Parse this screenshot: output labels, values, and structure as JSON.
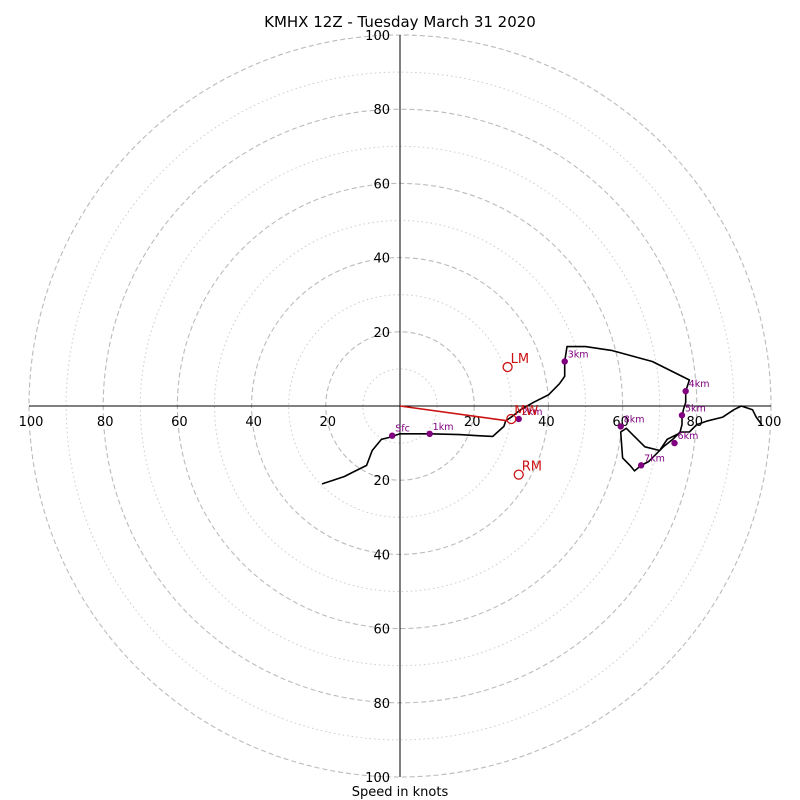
{
  "chart_data": {
    "type": "line",
    "title": "KMHX 12Z - Tuesday March 31 2020",
    "xlabel": "Speed in knots",
    "ylabel": "",
    "xlim": [
      -100,
      100
    ],
    "ylim": [
      -100,
      100
    ],
    "rings_major": [
      20,
      40,
      60,
      80,
      100
    ],
    "rings_minor": [
      10,
      30,
      50,
      70,
      90
    ],
    "ticks": [
      20,
      40,
      60,
      80,
      100
    ],
    "grid": true,
    "colors": {
      "trace": "#000000",
      "height_marker": "#800080",
      "motion": "#cc1111",
      "ring": "#bbbbbb"
    },
    "series": [
      {
        "x": [
          -21,
          -18,
          -15,
          -12,
          -9,
          -7.5,
          -5,
          -3,
          0,
          3,
          8,
          16,
          21,
          25,
          28,
          28.5,
          30,
          32.5,
          36,
          40,
          43,
          44.4,
          44.4,
          45,
          50,
          57,
          68,
          78,
          77,
          77,
          76.4,
          76,
          76,
          75.5,
          73.5,
          71,
          69,
          67,
          65,
          63.2,
          62,
          60,
          59.5,
          61,
          66,
          70,
          72,
          74,
          76,
          78,
          80,
          83,
          87,
          90,
          92,
          95,
          96,
          97.5
        ],
        "y": [
          -21,
          -20,
          -19,
          -17.5,
          -16,
          -12,
          -9,
          -8.5,
          -7.5,
          -7.5,
          -7.5,
          -7.7,
          -8,
          -8.2,
          -5.5,
          -4,
          -3,
          -1,
          1,
          3,
          6,
          8,
          12,
          16,
          16,
          15,
          12,
          7,
          4,
          1,
          -1,
          -3,
          -5,
          -7,
          -9,
          -11,
          -13,
          -15,
          -16,
          -17.5,
          -16,
          -14,
          -7,
          -6,
          -11,
          -12,
          -9,
          -8,
          -7,
          -7,
          -5,
          -4,
          -3,
          -1,
          0,
          -1,
          -3,
          -5
        ]
      }
    ],
    "height_labels": [
      {
        "label": "Sfc",
        "x": -2.1,
        "y": -8
      },
      {
        "label": "1km",
        "x": 8,
        "y": -7.5
      },
      {
        "label": "2km",
        "x": 32,
        "y": -3.5
      },
      {
        "label": "3km",
        "x": 44.4,
        "y": 12
      },
      {
        "label": "4km",
        "x": 77,
        "y": 4
      },
      {
        "label": "5km",
        "x": 76,
        "y": -2.5
      },
      {
        "label": "6km",
        "x": 74,
        "y": -10
      },
      {
        "label": "7km",
        "x": 65,
        "y": -16
      },
      {
        "label": "8km",
        "x": 59.5,
        "y": -5.5
      }
    ],
    "storm_motion": [
      {
        "label": "LM",
        "x": 29,
        "y": 10.5
      },
      {
        "label": "RM",
        "x": 32,
        "y": -18.5
      },
      {
        "label": "MW",
        "x": 30,
        "y": -3.5
      }
    ],
    "bunkers_vector": {
      "label": "",
      "x": 29,
      "y": -4
    }
  }
}
